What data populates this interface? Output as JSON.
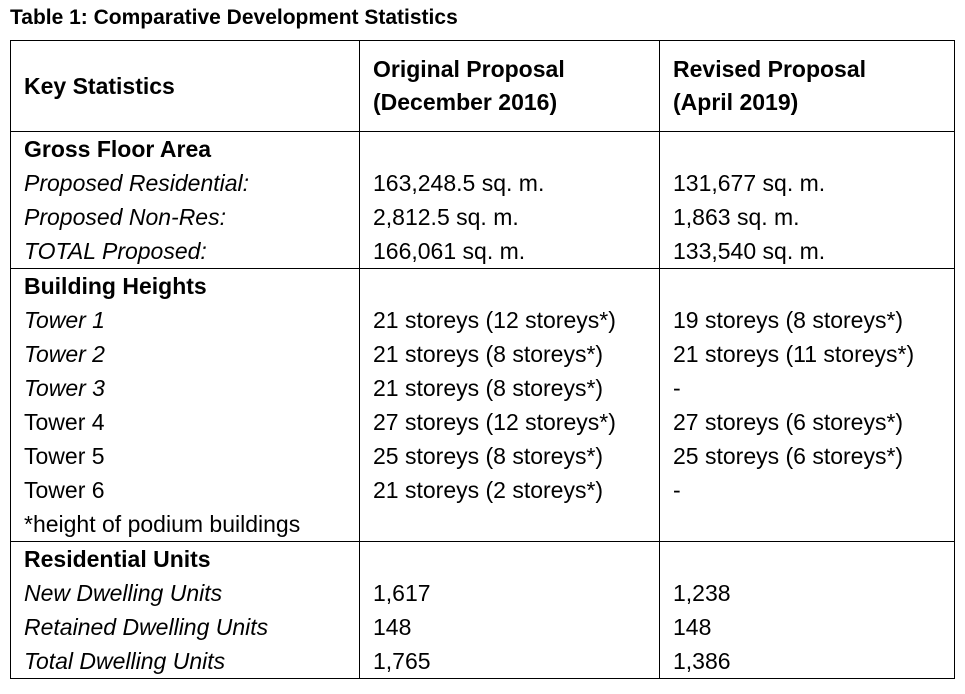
{
  "title": "Table 1: Comparative Development Statistics",
  "table": {
    "header": [
      [
        "Key Statistics"
      ],
      [
        "Original Proposal",
        "(December 2016)"
      ],
      [
        "Revised Proposal",
        "(April 2019)"
      ]
    ],
    "sections": [
      {
        "heading": "Gross Floor Area",
        "rows": [
          [
            "Proposed Residential:",
            "163,248.5 sq. m.",
            "131,677 sq. m."
          ],
          [
            "Proposed Non-Res:",
            "2,812.5 sq. m.",
            "1,863 sq. m."
          ],
          [
            "TOTAL Proposed:",
            "166,061 sq. m.",
            "133,540 sq. m."
          ]
        ]
      },
      {
        "heading": "Building Heights",
        "rows": [
          [
            "Tower 1",
            "21 storeys (12 storeys*)",
            "19 storeys (8 storeys*)"
          ],
          [
            "Tower 2",
            "21 storeys (8 storeys*)",
            "21 storeys (11 storeys*)"
          ],
          [
            "Tower 3",
            "21 storeys (8 storeys*)",
            "-"
          ],
          [
            "Tower 4",
            "27 storeys (12 storeys*)",
            "27 storeys (6 storeys*)"
          ],
          [
            "Tower 5",
            "25 storeys (8 storeys*)",
            "25 storeys (6 storeys*)"
          ],
          [
            "Tower 6",
            "21 storeys (2 storeys*)",
            "-"
          ]
        ],
        "note": "*height of podium buildings"
      },
      {
        "heading": "Residential Units",
        "rows": [
          [
            "New Dwelling Units",
            "1,617",
            "1,238"
          ],
          [
            "Retained Dwelling Units",
            "148",
            "148"
          ],
          [
            "Total Dwelling Units",
            "1,765",
            "1,386"
          ]
        ]
      }
    ]
  }
}
